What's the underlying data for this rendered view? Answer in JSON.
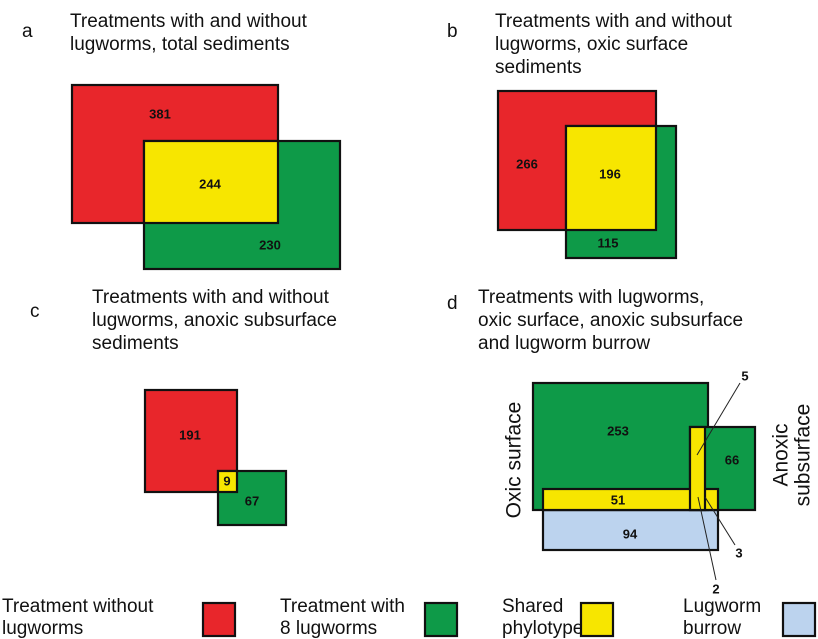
{
  "panels": [
    {
      "letter": "a",
      "title": [
        "Treatments with and without",
        "lugworms, total sediments"
      ],
      "without": 381,
      "shared": 244,
      "with": 230
    },
    {
      "letter": "b",
      "title": [
        "Treatments with and without",
        "lugworms, oxic surface",
        "sediments"
      ],
      "without": 266,
      "shared": 196,
      "with": 115
    },
    {
      "letter": "c",
      "title": [
        "Treatments with and without",
        "lugworms, anoxic subsurface",
        "sediments"
      ],
      "without": 191,
      "shared": 9,
      "with": 67
    },
    {
      "letter": "d",
      "title": [
        "Treatments with lugworms,",
        "oxic surface, anoxic subsurface",
        "and lugworm burrow"
      ],
      "oxic": 253,
      "anoxic": 66,
      "shared_oxic_burrow": 51,
      "burrow": 94,
      "shared_oxic_anoxic": 5,
      "shared_anoxic_burrow": 3,
      "shared_all": 2,
      "oxic_label": "Oxic surface",
      "anoxic_label": [
        "Anoxic",
        "subsurface"
      ]
    }
  ],
  "legend": [
    {
      "label": [
        "Treatment without",
        "lugworms"
      ],
      "color": "#e8262b"
    },
    {
      "label": [
        "Treatment with",
        "8 lugworms"
      ],
      "color": "#0e9a48"
    },
    {
      "label": [
        "Shared",
        "phylotypes"
      ],
      "color": "#f7e600"
    },
    {
      "label": [
        "Lugworm",
        "burrow"
      ],
      "color": "#bcd3ee"
    }
  ]
}
